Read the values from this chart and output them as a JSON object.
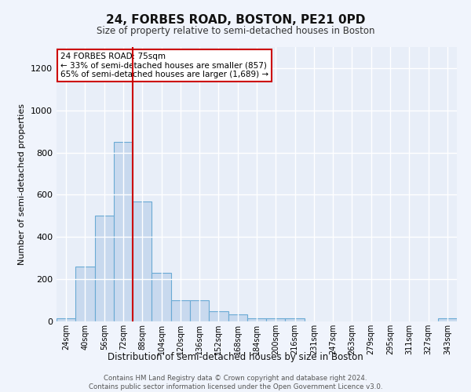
{
  "title": "24, FORBES ROAD, BOSTON, PE21 0PD",
  "subtitle": "Size of property relative to semi-detached houses in Boston",
  "xlabel": "Distribution of semi-detached houses by size in Boston",
  "ylabel": "Number of semi-detached properties",
  "bar_color": "#c8d9ee",
  "bar_edge_color": "#6aaad4",
  "background_color": "#e8eef8",
  "grid_color": "#ffffff",
  "categories": [
    "24sqm",
    "40sqm",
    "56sqm",
    "72sqm",
    "88sqm",
    "104sqm",
    "120sqm",
    "136sqm",
    "152sqm",
    "168sqm",
    "184sqm",
    "200sqm",
    "216sqm",
    "231sqm",
    "247sqm",
    "263sqm",
    "279sqm",
    "295sqm",
    "311sqm",
    "327sqm",
    "343sqm"
  ],
  "values": [
    15,
    260,
    500,
    850,
    570,
    230,
    100,
    100,
    50,
    35,
    15,
    15,
    15,
    0,
    0,
    0,
    0,
    0,
    0,
    0,
    15
  ],
  "ylim": [
    0,
    1300
  ],
  "yticks": [
    0,
    200,
    400,
    600,
    800,
    1000,
    1200
  ],
  "property_label": "24 FORBES ROAD: 75sqm",
  "smaller_pct": "33% of semi-detached houses are smaller (857)",
  "larger_pct": "65% of semi-detached houses are larger (1,689)",
  "annotation_box_color": "#ffffff",
  "annotation_border_color": "#cc0000",
  "line_color": "#cc0000",
  "footer_line1": "Contains HM Land Registry data © Crown copyright and database right 2024.",
  "footer_line2": "Contains public sector information licensed under the Open Government Licence v3.0."
}
